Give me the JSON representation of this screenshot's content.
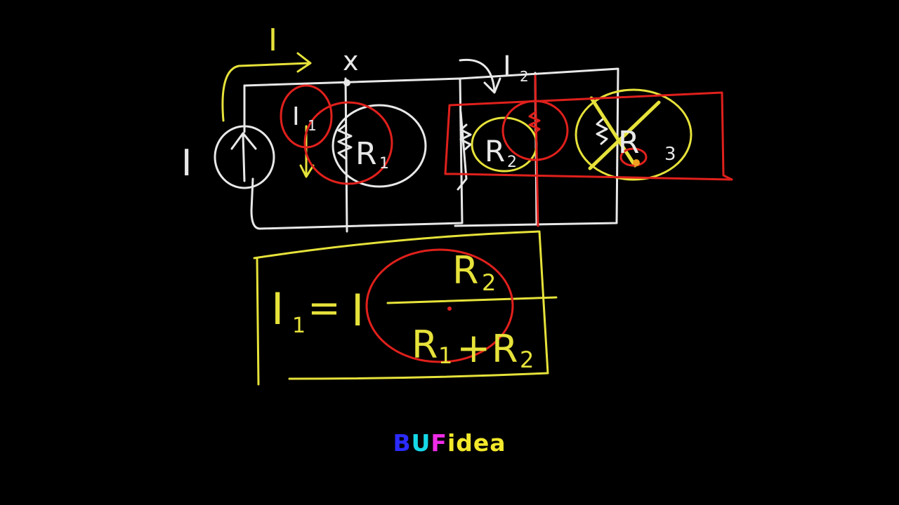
{
  "colors": {
    "background": "#000000",
    "chalk_white": "#e8e8e8",
    "chalk_yellow": "#e6e23a",
    "chalk_red": "#e0201c"
  },
  "diagram": {
    "source_label": "I",
    "top_current_label": "I",
    "node_label": "x",
    "branch1_current_label": "I",
    "branch1_current_subscript": "1",
    "branch2_current_label": "I",
    "branch2_current_subscript": "2",
    "r1_label": "R",
    "r1_subscript": "1",
    "r2_label": "R",
    "r2_subscript": "2",
    "r3_label": "R",
    "r3_subscript": "3"
  },
  "formula": {
    "lhs_symbol": "I",
    "lhs_subscript": "1",
    "equals": "=",
    "multiplier": "I",
    "numerator": "R",
    "numerator_subscript": "2",
    "denom_r1": "R",
    "denom_r1_subscript": "1",
    "plus": "+",
    "denom_r2": "R",
    "denom_r2_subscript": "2"
  },
  "logo": {
    "letters": [
      {
        "text": "B",
        "color": "#2b2bff"
      },
      {
        "text": "U",
        "color": "#16d9e8"
      },
      {
        "text": "F",
        "color": "#f02ce8"
      },
      {
        "text": "idea",
        "color": "#f3e92a"
      }
    ]
  }
}
